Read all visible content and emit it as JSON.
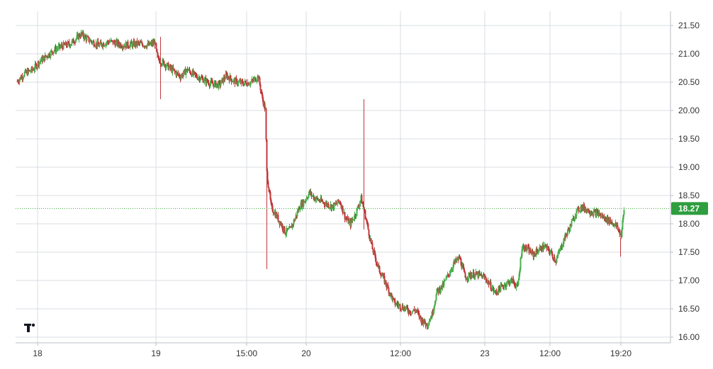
{
  "chart_data": {
    "type": "candlestick",
    "colors": {
      "up": "#4caf50",
      "down": "#c0393b",
      "grid": "#d9dde3",
      "last_price_line": "#3aa53a",
      "axis_text": "#333333"
    },
    "ylim": [
      15.95,
      21.62
    ],
    "y_ticks": [
      "21.50",
      "21.00",
      "20.50",
      "20.00",
      "19.50",
      "19.00",
      "18.50",
      "18.00",
      "17.50",
      "17.00",
      "16.50",
      "16.00"
    ],
    "x_ticks": [
      "18",
      "19",
      "15:00",
      "20",
      "12:00",
      "23",
      "12:00",
      "19:20"
    ],
    "last_price": "18.27",
    "logo": "tradingview-logo",
    "price_path": [
      [
        0,
        20.52
      ],
      [
        10,
        20.65
      ],
      [
        22,
        20.72
      ],
      [
        30,
        20.85
      ],
      [
        40,
        20.95
      ],
      [
        50,
        21.05
      ],
      [
        60,
        21.12
      ],
      [
        75,
        21.18
      ],
      [
        90,
        21.35
      ],
      [
        100,
        21.25
      ],
      [
        115,
        21.15
      ],
      [
        130,
        21.22
      ],
      [
        150,
        21.15
      ],
      [
        170,
        21.18
      ],
      [
        185,
        21.15
      ],
      [
        194,
        21.2
      ],
      [
        198,
        20.9
      ],
      [
        205,
        20.85
      ],
      [
        212,
        20.78
      ],
      [
        220,
        20.7
      ],
      [
        230,
        20.6
      ],
      [
        240,
        20.72
      ],
      [
        250,
        20.62
      ],
      [
        262,
        20.55
      ],
      [
        272,
        20.48
      ],
      [
        285,
        20.45
      ],
      [
        295,
        20.62
      ],
      [
        305,
        20.52
      ],
      [
        318,
        20.48
      ],
      [
        330,
        20.5
      ],
      [
        340,
        20.6
      ],
      [
        345,
        20.25
      ],
      [
        350,
        20.0
      ],
      [
        352,
        18.9
      ],
      [
        358,
        18.3
      ],
      [
        365,
        18.15
      ],
      [
        372,
        18.0
      ],
      [
        378,
        17.85
      ],
      [
        385,
        17.9
      ],
      [
        392,
        18.1
      ],
      [
        398,
        18.3
      ],
      [
        405,
        18.4
      ],
      [
        412,
        18.55
      ],
      [
        420,
        18.45
      ],
      [
        428,
        18.4
      ],
      [
        436,
        18.35
      ],
      [
        445,
        18.3
      ],
      [
        455,
        18.4
      ],
      [
        463,
        18.1
      ],
      [
        470,
        18.0
      ],
      [
        478,
        18.2
      ],
      [
        485,
        18.45
      ],
      [
        490,
        18.2
      ],
      [
        495,
        17.9
      ],
      [
        500,
        17.6
      ],
      [
        505,
        17.4
      ],
      [
        510,
        17.2
      ],
      [
        518,
        17.0
      ],
      [
        525,
        16.8
      ],
      [
        532,
        16.6
      ],
      [
        540,
        16.55
      ],
      [
        548,
        16.5
      ],
      [
        555,
        16.45
      ],
      [
        562,
        16.48
      ],
      [
        570,
        16.3
      ],
      [
        578,
        16.22
      ],
      [
        585,
        16.4
      ],
      [
        592,
        16.8
      ],
      [
        600,
        16.9
      ],
      [
        608,
        17.1
      ],
      [
        616,
        17.3
      ],
      [
        624,
        17.4
      ],
      [
        632,
        17.05
      ],
      [
        640,
        17.1
      ],
      [
        650,
        17.1
      ],
      [
        660,
        17.05
      ],
      [
        668,
        16.9
      ],
      [
        674,
        16.78
      ],
      [
        680,
        16.85
      ],
      [
        690,
        16.95
      ],
      [
        698,
        17.0
      ],
      [
        706,
        16.88
      ],
      [
        712,
        17.6
      ],
      [
        720,
        17.55
      ],
      [
        728,
        17.45
      ],
      [
        736,
        17.55
      ],
      [
        744,
        17.6
      ],
      [
        752,
        17.5
      ],
      [
        760,
        17.35
      ],
      [
        766,
        17.55
      ],
      [
        772,
        17.75
      ],
      [
        780,
        17.95
      ],
      [
        788,
        18.2
      ],
      [
        796,
        18.3
      ],
      [
        804,
        18.25
      ],
      [
        812,
        18.2
      ],
      [
        820,
        18.18
      ],
      [
        828,
        18.1
      ],
      [
        836,
        18.05
      ],
      [
        844,
        17.98
      ],
      [
        852,
        17.8
      ],
      [
        856,
        18.25
      ]
    ]
  }
}
